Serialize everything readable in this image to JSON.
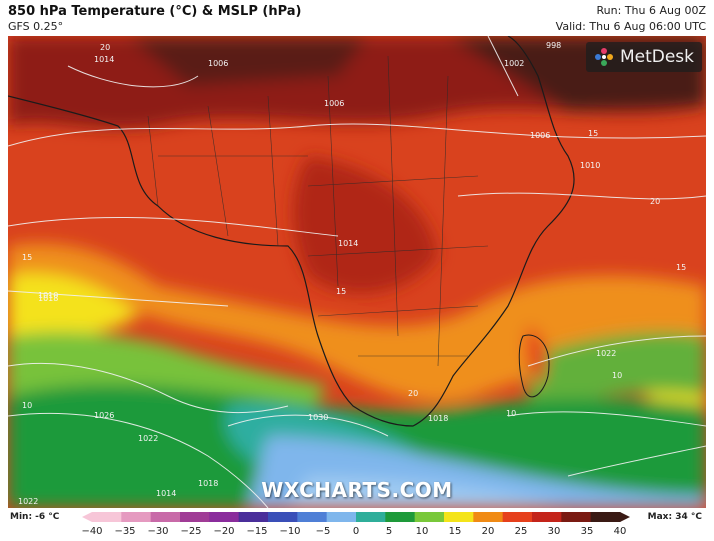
{
  "header": {
    "title": "850 hPa Temperature (°C) & MSLP (hPa)",
    "model": "GFS 0.25°",
    "run": "Run: Thu 6 Aug 00Z",
    "valid": "Valid: Thu 6 Aug 06:00 UTC"
  },
  "branding": {
    "logo_text": "MetDesk",
    "watermark": "WXCHARTS.COM"
  },
  "legend": {
    "min_label": "Min: -6 °C",
    "max_label": "Max: 34 °C",
    "ticks": [
      "−40",
      "−35",
      "−30",
      "−25",
      "−20",
      "−15",
      "−10",
      "−5",
      "0",
      "5",
      "10",
      "15",
      "20",
      "25",
      "30",
      "35",
      "40"
    ],
    "colors": [
      "#f7c6d8",
      "#e59ac0",
      "#c86aa8",
      "#a03c96",
      "#8a2c9c",
      "#4a2e9a",
      "#3a4fb8",
      "#4f7fd6",
      "#7fb6ec",
      "#2fae9a",
      "#1e9a3a",
      "#79c83a",
      "#f4e41a",
      "#f08a14",
      "#e6401c",
      "#c4241a",
      "#7a1a12",
      "#3a1a14"
    ]
  },
  "isobars": [
    "1014",
    "1006",
    "1006",
    "1002",
    "998",
    "1006",
    "1010",
    "1010",
    "1014",
    "1018",
    "1018",
    "1022",
    "1026",
    "1030",
    "1022",
    "1018",
    "1014",
    "1022"
  ],
  "map_temperature_labels": [
    "20",
    "15",
    "15",
    "10",
    "10",
    "10",
    "15",
    "20",
    "15",
    "20"
  ]
}
